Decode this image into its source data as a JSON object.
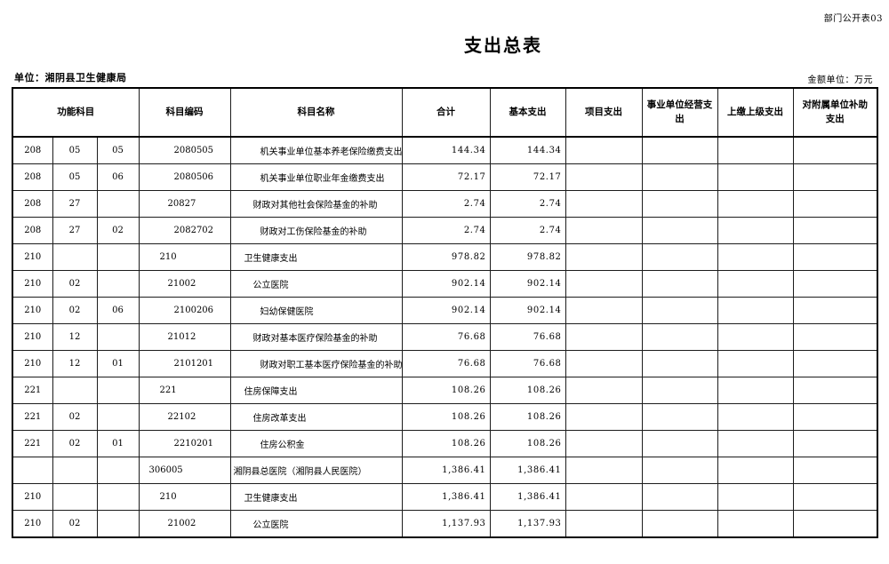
{
  "page": {
    "corner_label": "部门公开表03",
    "title": "支出总表",
    "unit_label": "单位：湘阴县卫生健康局",
    "amount_unit_label": "金额单位：万元"
  },
  "table": {
    "headers": {
      "func": "功能科目",
      "code": "科目编码",
      "name": "科目名称",
      "total": "合计",
      "basic": "基本支出",
      "project": "项目支出",
      "operating": "事业单位经营支\n出",
      "upper": "上缴上级支出",
      "subsidy": "对附属单位补助\n支出"
    },
    "rows": [
      {
        "f1": "208",
        "f2": "05",
        "f3": "05",
        "code": "2080505",
        "level": 3,
        "name": "机关事业单位基本养老保险缴费支出",
        "total": "144.34",
        "basic": "144.34",
        "project": "",
        "operating": "",
        "upper": "",
        "subsidy": ""
      },
      {
        "f1": "208",
        "f2": "05",
        "f3": "06",
        "code": "2080506",
        "level": 3,
        "name": "机关事业单位职业年金缴费支出",
        "total": "72.17",
        "basic": "72.17",
        "project": "",
        "operating": "",
        "upper": "",
        "subsidy": ""
      },
      {
        "f1": "208",
        "f2": "27",
        "f3": "",
        "code": "20827",
        "level": 2,
        "name": "财政对其他社会保险基金的补助",
        "total": "2.74",
        "basic": "2.74",
        "project": "",
        "operating": "",
        "upper": "",
        "subsidy": ""
      },
      {
        "f1": "208",
        "f2": "27",
        "f3": "02",
        "code": "2082702",
        "level": 3,
        "name": "财政对工伤保险基金的补助",
        "total": "2.74",
        "basic": "2.74",
        "project": "",
        "operating": "",
        "upper": "",
        "subsidy": ""
      },
      {
        "f1": "210",
        "f2": "",
        "f3": "",
        "code": "210",
        "level": 1,
        "name": "卫生健康支出",
        "total": "978.82",
        "basic": "978.82",
        "project": "",
        "operating": "",
        "upper": "",
        "subsidy": ""
      },
      {
        "f1": "210",
        "f2": "02",
        "f3": "",
        "code": "21002",
        "level": 2,
        "name": "公立医院",
        "total": "902.14",
        "basic": "902.14",
        "project": "",
        "operating": "",
        "upper": "",
        "subsidy": ""
      },
      {
        "f1": "210",
        "f2": "02",
        "f3": "06",
        "code": "2100206",
        "level": 3,
        "name": "妇幼保健医院",
        "total": "902.14",
        "basic": "902.14",
        "project": "",
        "operating": "",
        "upper": "",
        "subsidy": ""
      },
      {
        "f1": "210",
        "f2": "12",
        "f3": "",
        "code": "21012",
        "level": 2,
        "name": "财政对基本医疗保险基金的补助",
        "total": "76.68",
        "basic": "76.68",
        "project": "",
        "operating": "",
        "upper": "",
        "subsidy": ""
      },
      {
        "f1": "210",
        "f2": "12",
        "f3": "01",
        "code": "2101201",
        "level": 3,
        "name": "财政对职工基本医疗保险基金的补助",
        "total": "76.68",
        "basic": "76.68",
        "project": "",
        "operating": "",
        "upper": "",
        "subsidy": ""
      },
      {
        "f1": "221",
        "f2": "",
        "f3": "",
        "code": "221",
        "level": 1,
        "name": "住房保障支出",
        "total": "108.26",
        "basic": "108.26",
        "project": "",
        "operating": "",
        "upper": "",
        "subsidy": ""
      },
      {
        "f1": "221",
        "f2": "02",
        "f3": "",
        "code": "22102",
        "level": 2,
        "name": "住房改革支出",
        "total": "108.26",
        "basic": "108.26",
        "project": "",
        "operating": "",
        "upper": "",
        "subsidy": ""
      },
      {
        "f1": "221",
        "f2": "02",
        "f3": "01",
        "code": "2210201",
        "level": 3,
        "name": "住房公积金",
        "total": "108.26",
        "basic": "108.26",
        "project": "",
        "operating": "",
        "upper": "",
        "subsidy": ""
      },
      {
        "f1": "",
        "f2": "",
        "f3": "",
        "code": "306005",
        "level": 0,
        "name": "湘阴县总医院（湘阴县人民医院）",
        "total": "1,386.41",
        "basic": "1,386.41",
        "project": "",
        "operating": "",
        "upper": "",
        "subsidy": ""
      },
      {
        "f1": "210",
        "f2": "",
        "f3": "",
        "code": "210",
        "level": 1,
        "name": "卫生健康支出",
        "total": "1,386.41",
        "basic": "1,386.41",
        "project": "",
        "operating": "",
        "upper": "",
        "subsidy": ""
      },
      {
        "f1": "210",
        "f2": "02",
        "f3": "",
        "code": "21002",
        "level": 2,
        "name": "公立医院",
        "total": "1,137.93",
        "basic": "1,137.93",
        "project": "",
        "operating": "",
        "upper": "",
        "subsidy": ""
      }
    ]
  }
}
